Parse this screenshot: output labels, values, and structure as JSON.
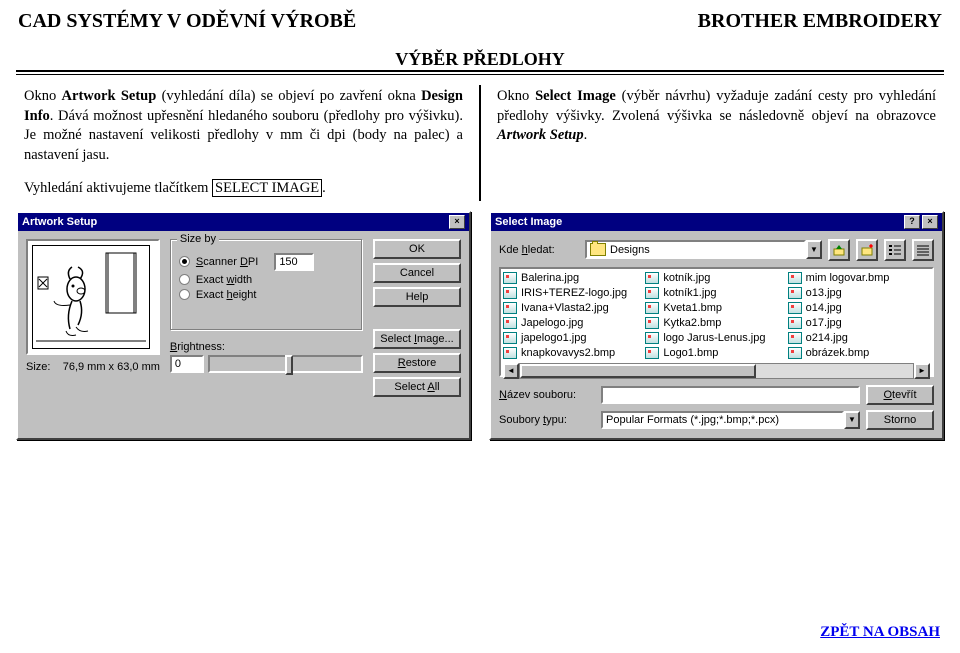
{
  "header": {
    "left": "CAD SYSTÉMY V ODĚVNÍ VÝROBĚ",
    "right": "BROTHER EMBROIDERY",
    "subtitle": "VÝBĚR PŘEDLOHY"
  },
  "text": {
    "left_p1a": "Okno ",
    "left_p1b": "Artwork Setup",
    "left_p1c": " (vyhledání díla) se objeví po zavření okna ",
    "left_p1d": "Design Info",
    "left_p1e": ". Dává možnost upřesnění hledaného souboru (předlohy pro výšivku). Je možné nastavení velikosti předlohy v mm či dpi (body na palec) a nastavení jasu.",
    "left_p2a": "Vyhledání aktivujeme tlačítkem ",
    "left_p2b": "SELECT IMAGE",
    "left_p2c": ".",
    "right_p1a": "Okno ",
    "right_p1b": "Select Image",
    "right_p1c": " (výběr návrhu) vyžaduje zadání cesty pro vyhledání předlohy výšivky. Zvolená výšivka se následovně objeví na obrazovce ",
    "right_p1d": "Artwork Setup",
    "right_p1e": "."
  },
  "artwork_setup": {
    "title": "Artwork Setup",
    "close_glyph": "×",
    "group_label": "Size by",
    "opt_dpi": "Scanner DPI",
    "opt_dpi_val": "150",
    "opt_w": "Exact width",
    "opt_h": "Exact height",
    "btn_ok": "OK",
    "btn_cancel": "Cancel",
    "btn_help": "Help",
    "btn_select": "Select Image...",
    "btn_restore": "Restore",
    "btn_select_all": "Select All",
    "brightness_lbl": "Brightness:",
    "brightness_val": "0",
    "size_lbl": "Size:",
    "size_val": "76,9 mm x 63,0 mm"
  },
  "select_image": {
    "title": "Select Image",
    "help_glyph": "?",
    "close_glyph": "×",
    "lookin_lbl": "Kde hledat:",
    "lookin_val": "Designs",
    "files_col1": [
      "Balerina.jpg",
      "IRIS+TEREZ-logo.jpg",
      "Ivana+Vlasta2.jpg",
      "Japelogo.jpg",
      "japelogo1.jpg",
      "knapkovavys2.bmp"
    ],
    "files_col2": [
      "kotník.jpg",
      "kotník1.jpg",
      "Kveta1.bmp",
      "Kytka2.bmp",
      "logo Jarus-Lenus.jpg",
      "Logo1.bmp"
    ],
    "files_col3": [
      "mim logovar.bmp",
      "o13.jpg",
      "o14.jpg",
      "o17.jpg",
      "o214.jpg",
      "obrázek.bmp"
    ],
    "filename_lbl": "Název souboru:",
    "filename_val": "",
    "filetype_lbl": "Soubory typu:",
    "filetype_val": "Popular Formats (*.jpg;*.bmp;*.pcx)",
    "btn_open": "Otevřít",
    "btn_cancel": "Storno"
  },
  "footer": {
    "link": "ZPĚT NA OBSAH"
  }
}
